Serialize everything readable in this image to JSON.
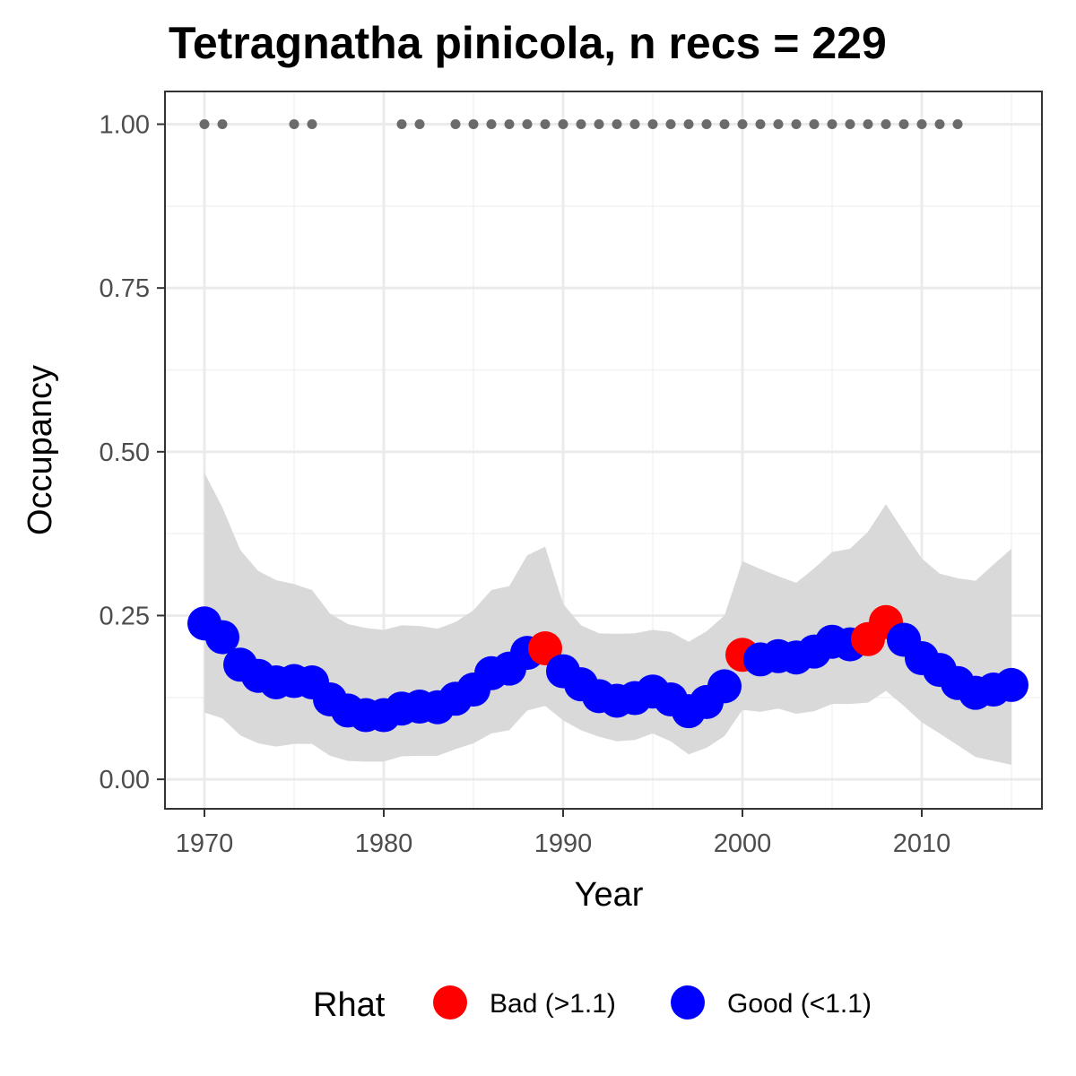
{
  "chart_data": {
    "type": "line",
    "title": "Tetragnatha pinicola, n recs = 229",
    "xlabel": "Year",
    "ylabel": "Occupancy",
    "xlim": [
      1967.8,
      2016.7
    ],
    "ylim": [
      -0.045,
      1.05
    ],
    "x_ticks": [
      1970,
      1980,
      1990,
      2000,
      2010
    ],
    "x_tick_labels": [
      "1970",
      "1980",
      "1990",
      "2000",
      "2010"
    ],
    "y_ticks": [
      0,
      0.25,
      0.5,
      0.75,
      1
    ],
    "y_tick_labels": [
      "0.00",
      "0.25",
      "0.50",
      "0.75",
      "1.00"
    ],
    "grid": true,
    "legend": {
      "title": "Rhat",
      "position": "bottom",
      "items": [
        {
          "label": "Bad (>1.1)",
          "color": "#ff0000"
        },
        {
          "label": "Good (<1.1)",
          "color": "#0000ff"
        }
      ]
    },
    "colors": {
      "bad": "#ff0000",
      "good": "#0000ff",
      "ribbon": "#d9d9d9",
      "record_dot": "#6b6b6b"
    },
    "record_years": [
      1970,
      1971,
      1975,
      1976,
      1981,
      1982,
      1984,
      1985,
      1986,
      1987,
      1988,
      1989,
      1990,
      1991,
      1992,
      1993,
      1994,
      1995,
      1996,
      1997,
      1998,
      1999,
      2000,
      2001,
      2002,
      2003,
      2004,
      2005,
      2006,
      2007,
      2008,
      2009,
      2010,
      2011,
      2012
    ],
    "record_value": 1.0,
    "series": [
      {
        "year": 1970,
        "mean": 0.238,
        "lower": 0.102,
        "upper": 0.468,
        "rhat": "good"
      },
      {
        "year": 1971,
        "mean": 0.217,
        "lower": 0.093,
        "upper": 0.415,
        "rhat": "good"
      },
      {
        "year": 1972,
        "mean": 0.175,
        "lower": 0.067,
        "upper": 0.35,
        "rhat": "good"
      },
      {
        "year": 1973,
        "mean": 0.158,
        "lower": 0.055,
        "upper": 0.318,
        "rhat": "good"
      },
      {
        "year": 1974,
        "mean": 0.148,
        "lower": 0.05,
        "upper": 0.304,
        "rhat": "good"
      },
      {
        "year": 1975,
        "mean": 0.15,
        "lower": 0.054,
        "upper": 0.298,
        "rhat": "good"
      },
      {
        "year": 1976,
        "mean": 0.148,
        "lower": 0.054,
        "upper": 0.289,
        "rhat": "good"
      },
      {
        "year": 1977,
        "mean": 0.122,
        "lower": 0.036,
        "upper": 0.253,
        "rhat": "good"
      },
      {
        "year": 1978,
        "mean": 0.105,
        "lower": 0.028,
        "upper": 0.237,
        "rhat": "good"
      },
      {
        "year": 1979,
        "mean": 0.098,
        "lower": 0.027,
        "upper": 0.231,
        "rhat": "good"
      },
      {
        "year": 1980,
        "mean": 0.098,
        "lower": 0.027,
        "upper": 0.228,
        "rhat": "good"
      },
      {
        "year": 1981,
        "mean": 0.108,
        "lower": 0.035,
        "upper": 0.235,
        "rhat": "good"
      },
      {
        "year": 1982,
        "mean": 0.111,
        "lower": 0.036,
        "upper": 0.234,
        "rhat": "good"
      },
      {
        "year": 1983,
        "mean": 0.11,
        "lower": 0.036,
        "upper": 0.23,
        "rhat": "good"
      },
      {
        "year": 1984,
        "mean": 0.123,
        "lower": 0.046,
        "upper": 0.24,
        "rhat": "good"
      },
      {
        "year": 1985,
        "mean": 0.137,
        "lower": 0.055,
        "upper": 0.258,
        "rhat": "good"
      },
      {
        "year": 1986,
        "mean": 0.162,
        "lower": 0.07,
        "upper": 0.289,
        "rhat": "good"
      },
      {
        "year": 1987,
        "mean": 0.169,
        "lower": 0.075,
        "upper": 0.295,
        "rhat": "good"
      },
      {
        "year": 1988,
        "mean": 0.193,
        "lower": 0.105,
        "upper": 0.342,
        "rhat": "good"
      },
      {
        "year": 1989,
        "mean": 0.2,
        "lower": 0.112,
        "upper": 0.355,
        "rhat": "bad"
      },
      {
        "year": 1990,
        "mean": 0.165,
        "lower": 0.09,
        "upper": 0.268,
        "rhat": "good"
      },
      {
        "year": 1991,
        "mean": 0.145,
        "lower": 0.075,
        "upper": 0.235,
        "rhat": "good"
      },
      {
        "year": 1992,
        "mean": 0.127,
        "lower": 0.065,
        "upper": 0.223,
        "rhat": "good"
      },
      {
        "year": 1993,
        "mean": 0.12,
        "lower": 0.058,
        "upper": 0.222,
        "rhat": "good"
      },
      {
        "year": 1994,
        "mean": 0.124,
        "lower": 0.06,
        "upper": 0.223,
        "rhat": "good"
      },
      {
        "year": 1995,
        "mean": 0.134,
        "lower": 0.07,
        "upper": 0.228,
        "rhat": "good"
      },
      {
        "year": 1996,
        "mean": 0.122,
        "lower": 0.058,
        "upper": 0.225,
        "rhat": "good"
      },
      {
        "year": 1997,
        "mean": 0.104,
        "lower": 0.038,
        "upper": 0.21,
        "rhat": "good"
      },
      {
        "year": 1998,
        "mean": 0.118,
        "lower": 0.048,
        "upper": 0.226,
        "rhat": "good"
      },
      {
        "year": 1999,
        "mean": 0.142,
        "lower": 0.066,
        "upper": 0.25,
        "rhat": "good"
      },
      {
        "year": 2000,
        "mean": 0.19,
        "lower": 0.106,
        "upper": 0.333,
        "rhat": "bad"
      },
      {
        "year": 2001,
        "mean": 0.183,
        "lower": 0.103,
        "upper": 0.321,
        "rhat": "good"
      },
      {
        "year": 2002,
        "mean": 0.188,
        "lower": 0.108,
        "upper": 0.31,
        "rhat": "good"
      },
      {
        "year": 2003,
        "mean": 0.186,
        "lower": 0.1,
        "upper": 0.3,
        "rhat": "good"
      },
      {
        "year": 2004,
        "mean": 0.195,
        "lower": 0.104,
        "upper": 0.322,
        "rhat": "good"
      },
      {
        "year": 2005,
        "mean": 0.21,
        "lower": 0.115,
        "upper": 0.347,
        "rhat": "good"
      },
      {
        "year": 2006,
        "mean": 0.206,
        "lower": 0.115,
        "upper": 0.352,
        "rhat": "good"
      },
      {
        "year": 2007,
        "mean": 0.214,
        "lower": 0.117,
        "upper": 0.378,
        "rhat": "bad"
      },
      {
        "year": 2008,
        "mean": 0.24,
        "lower": 0.135,
        "upper": 0.42,
        "rhat": "bad"
      },
      {
        "year": 2009,
        "mean": 0.213,
        "lower": 0.112,
        "upper": 0.378,
        "rhat": "good"
      },
      {
        "year": 2010,
        "mean": 0.185,
        "lower": 0.087,
        "upper": 0.337,
        "rhat": "good"
      },
      {
        "year": 2011,
        "mean": 0.167,
        "lower": 0.07,
        "upper": 0.314,
        "rhat": "good"
      },
      {
        "year": 2012,
        "mean": 0.147,
        "lower": 0.052,
        "upper": 0.307,
        "rhat": "good"
      },
      {
        "year": 2013,
        "mean": 0.132,
        "lower": 0.034,
        "upper": 0.303,
        "rhat": "good"
      },
      {
        "year": 2014,
        "mean": 0.137,
        "lower": 0.028,
        "upper": 0.328,
        "rhat": "good"
      },
      {
        "year": 2015,
        "mean": 0.144,
        "lower": 0.022,
        "upper": 0.352,
        "rhat": "good"
      }
    ]
  }
}
